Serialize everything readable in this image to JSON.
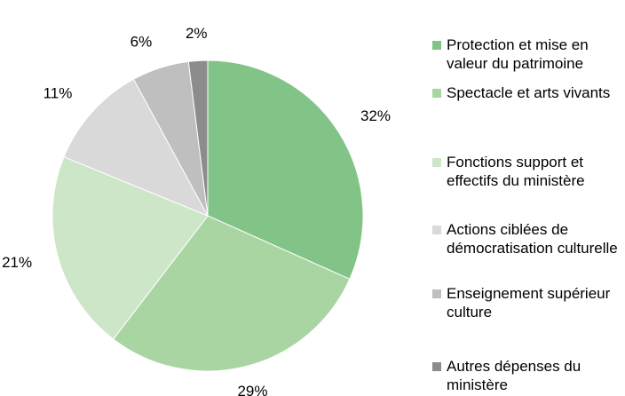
{
  "chart_data": {
    "type": "pie",
    "categories": [
      "Protection et mise en valeur du patrimoine",
      "Spectacle et arts vivants",
      "Fonctions support et effectifs du ministère",
      "Actions ciblées de démocratisation culturelle",
      "Enseignement supérieur culture",
      "Autres dépenses du ministère"
    ],
    "values": [
      32,
      29,
      21,
      11,
      6,
      2
    ],
    "value_labels": [
      "32%",
      "29%",
      "21%",
      "11%",
      "6%",
      "2%"
    ],
    "colors": [
      "#82c487",
      "#a9d5a3",
      "#cde6c8",
      "#d9d9d9",
      "#bfbfbf",
      "#8c8c8c"
    ],
    "legend": "right"
  }
}
